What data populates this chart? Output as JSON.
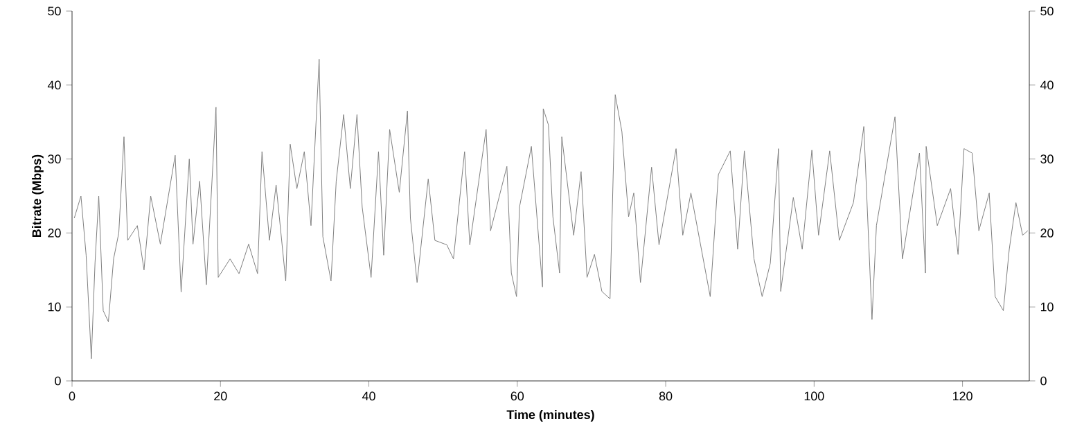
{
  "chart_data": {
    "type": "line",
    "xlabel": "Time (minutes)",
    "ylabel": "Bitrate (Mbps)",
    "xlim": [
      0,
      129
    ],
    "ylim": [
      0,
      50
    ],
    "xticks": [
      0,
      20,
      40,
      60,
      80,
      100,
      120
    ],
    "yticks": [
      0,
      10,
      20,
      30,
      40,
      50
    ],
    "y2lim": [
      0,
      50
    ],
    "y2ticks": [
      0,
      10,
      20,
      30,
      40,
      50
    ],
    "x": [
      0.3,
      1.2,
      1.9,
      2.6,
      3.1,
      3.6,
      4.2,
      4.9,
      5.6,
      6.3,
      7.0,
      7.5,
      8.8,
      9.7,
      10.6,
      11.9,
      13.9,
      14.7,
      15.8,
      16.3,
      17.2,
      18.1,
      19.4,
      19.7,
      21.3,
      22.5,
      23.8,
      25.0,
      25.6,
      26.6,
      27.5,
      28.8,
      29.4,
      30.3,
      31.3,
      32.2,
      33.3,
      33.8,
      34.9,
      35.6,
      36.6,
      37.5,
      38.4,
      39.1,
      40.3,
      41.3,
      42.0,
      42.8,
      44.1,
      45.2,
      45.6,
      46.5,
      48.0,
      48.9,
      50.5,
      51.4,
      52.9,
      53.6,
      55.8,
      56.4,
      58.6,
      59.2,
      59.9,
      60.3,
      61.9,
      63.4,
      63.5,
      64.2,
      64.8,
      65.7,
      66.0,
      67.6,
      68.6,
      69.4,
      70.4,
      71.4,
      72.5,
      73.2,
      74.1,
      75.0,
      75.7,
      76.6,
      78.1,
      79.1,
      81.4,
      82.3,
      83.4,
      86.0,
      87.1,
      88.7,
      89.7,
      90.6,
      91.9,
      93.0,
      94.1,
      95.2,
      95.5,
      97.2,
      98.4,
      99.7,
      100.6,
      102.1,
      103.4,
      105.3,
      106.7,
      107.8,
      108.4,
      110.9,
      111.9,
      114.2,
      115.0,
      115.1,
      116.6,
      118.4,
      119.4,
      120.2,
      121.3,
      122.2,
      123.6,
      124.4,
      125.5,
      126.3,
      127.2,
      128.1,
      128.8
    ],
    "series": [
      {
        "color": "#7f7f7f",
        "values": [
          22,
          25,
          17,
          3,
          16,
          25,
          9.5,
          8,
          16.5,
          20,
          33,
          19,
          21,
          15,
          25,
          18.5,
          30.5,
          12,
          30,
          18.5,
          27,
          13,
          37,
          14,
          16.5,
          14.5,
          18.5,
          14.5,
          31,
          19,
          26.5,
          13.5,
          32,
          26,
          31,
          21,
          43.5,
          19.5,
          13.5,
          27,
          36,
          26,
          36,
          23.5,
          14,
          31,
          17,
          34,
          25.5,
          36.5,
          22,
          13.3,
          27.3,
          19,
          18.4,
          16.5,
          31,
          18.4,
          34,
          20.3,
          29,
          14.6,
          11.4,
          23.5,
          31.7,
          12.7,
          36.8,
          34.6,
          22.2,
          14.6,
          33,
          19.7,
          28.3,
          14,
          17.1,
          12.1,
          11.1,
          38.7,
          33.7,
          22.2,
          25.4,
          13.3,
          28.9,
          18.4,
          31.4,
          19.7,
          25.4,
          11.4,
          27.9,
          31.1,
          17.8,
          31.1,
          16.5,
          11.4,
          15.9,
          31.4,
          12.1,
          24.8,
          17.8,
          31.2,
          19.7,
          31.1,
          19,
          24.1,
          34.4,
          8.3,
          21,
          35.7,
          16.5,
          30.8,
          14.6,
          31.7,
          21,
          26,
          17.1,
          31.4,
          30.8,
          20.3,
          25.4,
          11.4,
          9.5,
          17.8,
          24.1,
          19.7,
          20.3
        ]
      }
    ]
  }
}
